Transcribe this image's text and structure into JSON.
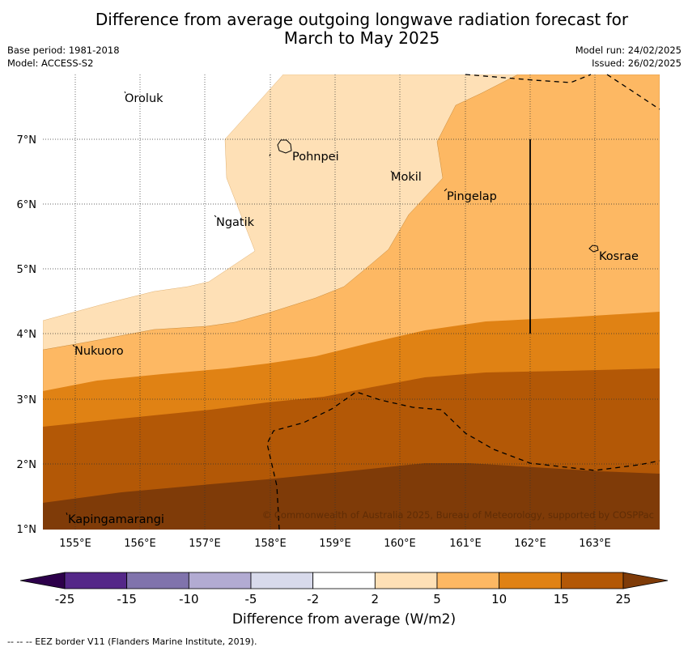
{
  "title_line1": "Difference from average outgoing longwave radiation forecast for",
  "title_line2": "March to May 2025",
  "meta": {
    "base_period": "Base period: 1981-2018",
    "model": "Model: ACCESS-S2",
    "model_run": "Model run: 24/02/2025",
    "issued": "Issued: 26/02/2025"
  },
  "map": {
    "lat_labels": [
      "7°N",
      "6°N",
      "5°N",
      "4°N",
      "3°N",
      "2°N",
      "1°N"
    ],
    "lon_labels": [
      "155°E",
      "156°E",
      "157°E",
      "158°E",
      "159°E",
      "160°E",
      "161°E",
      "162°E",
      "163°E"
    ],
    "places": [
      "Oroluk",
      "Pohnpei",
      "Mokil",
      "Pingelap",
      "Ngatik",
      "Kosrae",
      "Nukuoro",
      "Kapingamarangi"
    ],
    "copyright": "© Commonwealth of Australia 2025, Bureau of Meteorology, supported by COSPPac"
  },
  "colorbar": {
    "ticks": [
      "-25",
      "-15",
      "-10",
      "-5",
      "-2",
      "2",
      "5",
      "10",
      "15",
      "25"
    ],
    "colors": [
      "#2d004b",
      "#542788",
      "#8073ac",
      "#b2abd2",
      "#d8daeb",
      "#ffffff",
      "#fee0b6",
      "#fdb863",
      "#e08214",
      "#b35806",
      "#7f3b08"
    ],
    "label": "Difference from average (W/m2)"
  },
  "footnote": "--  --  -- EEZ border V11 (Flanders Marine Institute, 2019)."
}
